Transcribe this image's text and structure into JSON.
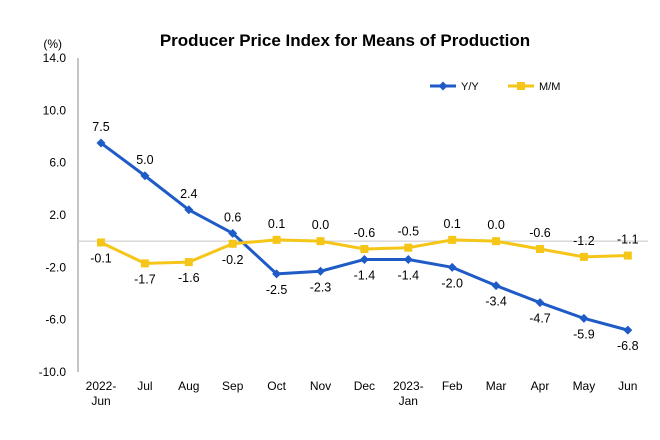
{
  "chart_data": {
    "type": "line",
    "title": "Producer Price Index for Means of Production",
    "ylabel": "(%)",
    "ylim": [
      -10.0,
      14.0
    ],
    "yticks": [
      "14.0",
      "10.0",
      "6.0",
      "2.0",
      "-2.0",
      "-6.0",
      "-10.0"
    ],
    "ytick_values": [
      14,
      10,
      6,
      2,
      -2,
      -6,
      -10
    ],
    "categories": [
      [
        "2022-",
        "Jun"
      ],
      [
        "Jul"
      ],
      [
        "Aug"
      ],
      [
        "Sep"
      ],
      [
        "Oct"
      ],
      [
        "Nov"
      ],
      [
        "Dec"
      ],
      [
        "2023-",
        "Jan"
      ],
      [
        "Feb"
      ],
      [
        "Mar"
      ],
      [
        "Apr"
      ],
      [
        "May"
      ],
      [
        "Jun"
      ]
    ],
    "legend_position": "top-right",
    "grid": false,
    "series": [
      {
        "name": "Y/Y",
        "color": "#1f5bc7",
        "marker": "diamond",
        "values": [
          7.5,
          5.0,
          2.4,
          0.6,
          -2.5,
          -2.3,
          -1.4,
          -1.4,
          -2.0,
          -3.4,
          -4.7,
          -5.9,
          -6.8
        ],
        "labels": [
          "7.5",
          "5.0",
          "2.4",
          "0.6",
          "-2.5",
          "-2.3",
          "-1.4",
          "-1.4",
          "-2.0",
          "-3.4",
          "-4.7",
          "-5.9",
          "-6.8"
        ]
      },
      {
        "name": "M/M",
        "color": "#f5c518",
        "marker": "square",
        "values": [
          -0.1,
          -1.7,
          -1.6,
          -0.2,
          0.1,
          0.0,
          -0.6,
          -0.5,
          0.1,
          0.0,
          -0.6,
          -1.2,
          -1.1
        ],
        "labels": [
          "-0.1",
          "-1.7",
          "-1.6",
          "-0.2",
          "0.1",
          "0.0",
          "-0.6",
          "-0.5",
          "0.1",
          "0.0",
          "-0.6",
          "-1.2",
          "-1.1"
        ]
      }
    ]
  }
}
